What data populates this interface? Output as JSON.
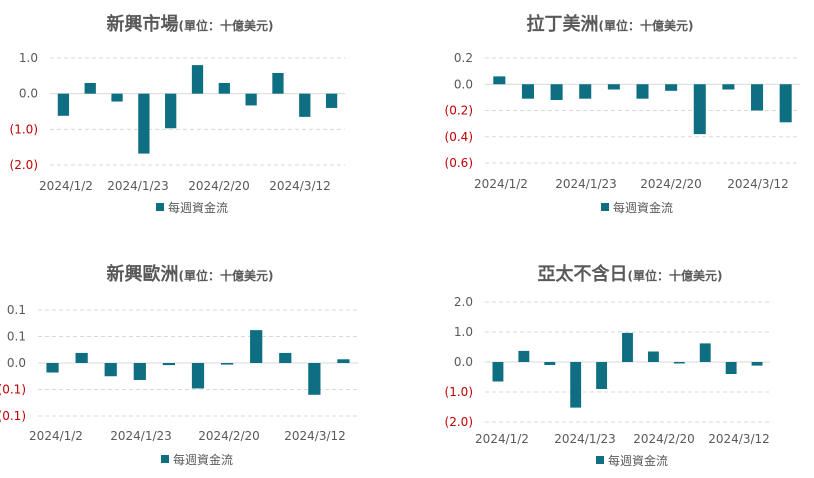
{
  "chart_data": [
    {
      "type": "bar",
      "title": "新興市場",
      "subtitle": "(單位：十億美元)",
      "x_tick_labels": [
        "2024/1/2",
        "2024/1/23",
        "2024/2/20",
        "2024/3/12"
      ],
      "y_tick_labels": [
        "1.0",
        "0.0",
        "(1.0)",
        "(2.0)"
      ],
      "y_ticks": [
        1.0,
        0.0,
        -1.0,
        -2.0
      ],
      "ylim": [
        -2.0,
        1.0
      ],
      "series": [
        {
          "name": "每週資金流",
          "color": "#0e6e82",
          "values": [
            -0.62,
            0.3,
            -0.22,
            -1.68,
            -0.97,
            0.8,
            0.3,
            -0.33,
            0.58,
            -0.65,
            -0.4
          ]
        }
      ],
      "grid": true,
      "legend": "bottom"
    },
    {
      "type": "bar",
      "title": "拉丁美洲",
      "subtitle": "(單位：十億美元)",
      "x_tick_labels": [
        "2024/1/2",
        "2024/1/23",
        "2024/2/20",
        "2024/3/12"
      ],
      "y_tick_labels": [
        "0.2",
        "0.0",
        "(0.2)",
        "(0.4)",
        "(0.6)"
      ],
      "y_ticks": [
        0.2,
        0.0,
        -0.2,
        -0.4,
        -0.6
      ],
      "ylim": [
        -0.6,
        0.2
      ],
      "series": [
        {
          "name": "每週資金流",
          "color": "#0e6e82",
          "values": [
            0.06,
            -0.11,
            -0.12,
            -0.11,
            -0.04,
            -0.11,
            -0.05,
            -0.38,
            -0.04,
            -0.2,
            -0.29
          ]
        }
      ],
      "grid": true,
      "legend": "bottom"
    },
    {
      "type": "bar",
      "title": "新興歐洲",
      "subtitle": "(單位：十億美元)",
      "x_tick_labels": [
        "2024/1/2",
        "2024/1/23",
        "2024/2/20",
        "2024/3/12"
      ],
      "y_tick_labels": [
        "0.1",
        "0.1",
        "0.0",
        "(0.1)",
        "(0.1)"
      ],
      "y_ticks": [
        0.1,
        0.05,
        0.0,
        -0.05,
        -0.1
      ],
      "ylim": [
        -0.1,
        0.1
      ],
      "series": [
        {
          "name": "每週資金流",
          "color": "#0e6e82",
          "values": [
            -0.018,
            0.019,
            -0.025,
            -0.032,
            -0.004,
            -0.048,
            -0.003,
            0.062,
            0.019,
            -0.06,
            0.007
          ]
        }
      ],
      "grid": true,
      "legend": "bottom"
    },
    {
      "type": "bar",
      "title": "亞太不含日",
      "subtitle": "(單位：十億美元)",
      "x_tick_labels": [
        "2024/1/2",
        "2024/1/23",
        "2024/2/20",
        "2024/3/12"
      ],
      "y_tick_labels": [
        "2.0",
        "1.0",
        "0.0",
        "(1.0)",
        "(2.0)"
      ],
      "y_ticks": [
        2.0,
        1.0,
        0.0,
        -1.0,
        -2.0
      ],
      "ylim": [
        -2.0,
        2.0
      ],
      "series": [
        {
          "name": "每週資金流",
          "color": "#0e6e82",
          "values": [
            -0.65,
            0.37,
            -0.1,
            -1.52,
            -0.9,
            0.97,
            0.35,
            -0.05,
            0.62,
            -0.4,
            -0.12
          ]
        }
      ],
      "grid": true,
      "legend": "bottom"
    }
  ]
}
